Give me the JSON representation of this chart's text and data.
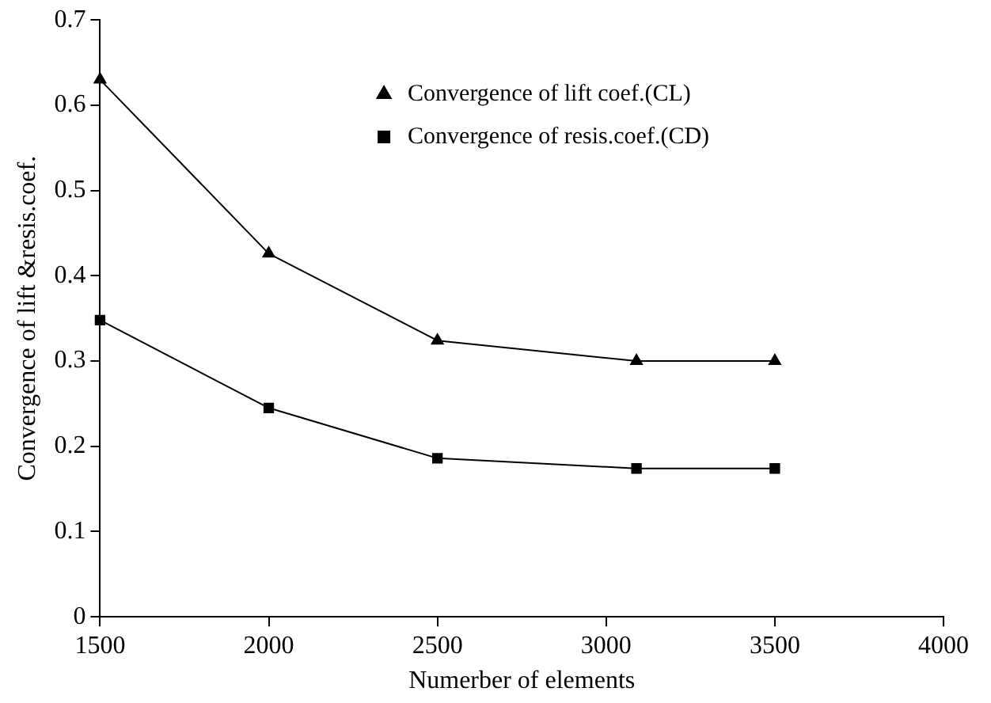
{
  "chart_data": {
    "type": "line",
    "xlabel": "Numerber of elements",
    "ylabel": "Convergence of lift &resis.coef.",
    "xlim": [
      1500,
      4000
    ],
    "xticks": [
      1500,
      2000,
      2500,
      3000,
      3500,
      4000
    ],
    "ylim": [
      0,
      0.7
    ],
    "yticks": [
      0,
      0.1,
      0.2,
      0.3,
      0.4,
      0.5,
      0.6,
      0.7
    ],
    "grid": false,
    "legend": "top",
    "line_style": "solid",
    "series": [
      {
        "name": "Convergence of lift coef.(CL)",
        "color": "#000000",
        "marker": "triangle",
        "x": [
          1500,
          2000,
          2500,
          3090,
          3500
        ],
        "values": [
          0.63,
          0.426,
          0.324,
          0.3,
          0.3
        ]
      },
      {
        "name": "Convergence of resis.coef.(CD)",
        "color": "#000000",
        "marker": "square",
        "x": [
          1500,
          2000,
          2500,
          3090,
          3500
        ],
        "values": [
          0.348,
          0.245,
          0.186,
          0.174,
          0.174
        ]
      }
    ]
  }
}
